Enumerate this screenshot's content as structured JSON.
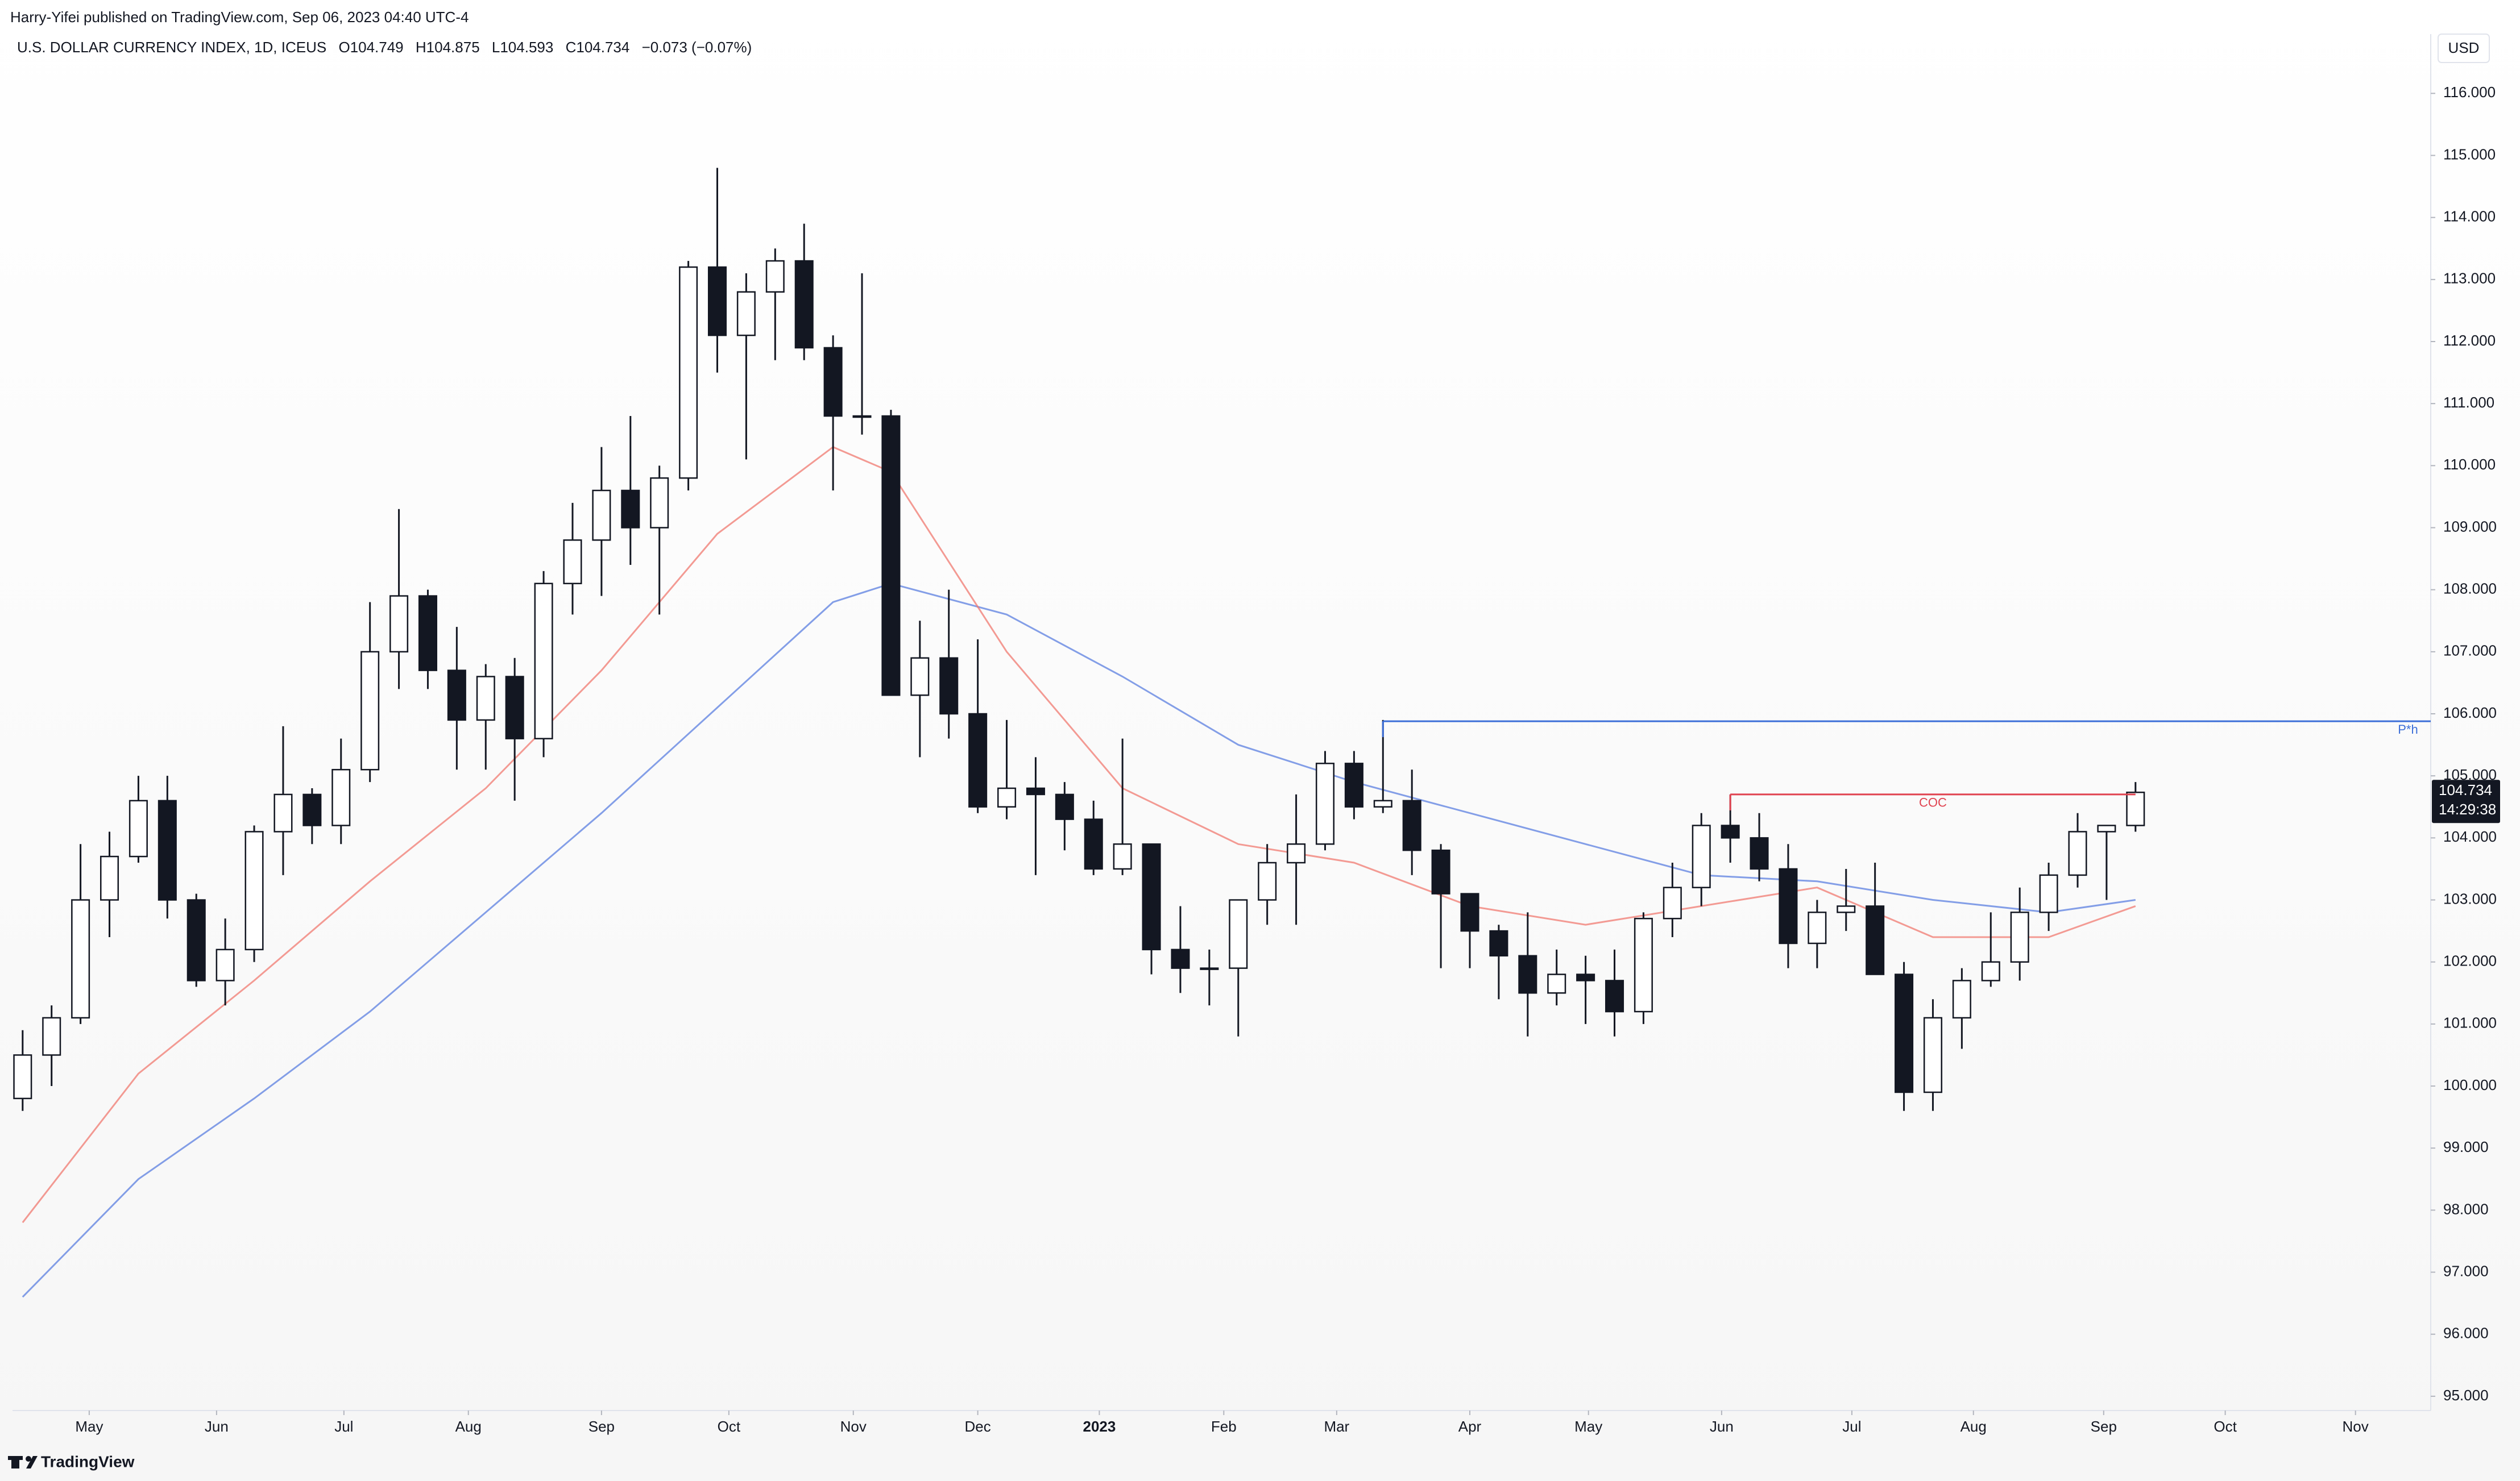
{
  "chart_data": {
    "type": "candlestick",
    "publisher": "Harry-Yifei published on TradingView.com, Sep 06, 2023 04:40 UTC-4",
    "title": "U.S. DOLLAR CURRENCY INDEX, 1D, ICEUS",
    "legend_values": [
      "O104.749",
      "H104.875",
      "L104.593",
      "C104.734",
      "−0.073 (−0.07%)"
    ],
    "currency": "USD",
    "brand": "TradingView",
    "last_price": 104.734,
    "countdown": "14:29:38",
    "up_color": "#ffffff",
    "down_color": "#131722",
    "x": [
      0,
      1,
      2,
      3,
      4,
      5,
      6,
      7,
      8,
      9,
      10,
      11,
      12,
      13,
      14,
      15,
      16,
      17,
      18,
      19,
      20,
      21,
      22,
      23,
      24,
      25,
      26,
      27,
      28,
      29,
      30,
      31,
      32,
      33,
      34,
      35,
      36,
      37,
      38,
      39,
      40,
      41,
      42,
      43,
      44,
      45,
      46,
      47,
      48,
      49,
      50,
      51,
      52,
      53,
      54,
      55,
      56,
      57,
      58,
      59,
      60,
      61,
      62,
      63,
      64,
      65,
      66,
      67,
      68,
      69,
      70,
      71,
      72,
      73
    ],
    "open": [
      99.8,
      100.5,
      101.1,
      103.0,
      103.7,
      104.6,
      103.0,
      101.7,
      102.2,
      104.1,
      104.7,
      104.2,
      105.1,
      107.0,
      107.9,
      106.7,
      105.9,
      106.6,
      105.6,
      108.1,
      108.8,
      109.6,
      109.0,
      109.8,
      113.2,
      112.1,
      112.8,
      113.3,
      111.9,
      110.8,
      110.8,
      106.3,
      106.9,
      106.0,
      104.5,
      104.8,
      104.7,
      104.3,
      103.5,
      103.9,
      102.2,
      101.9,
      101.9,
      103.0,
      103.6,
      103.9,
      105.2,
      104.5,
      104.6,
      103.8,
      103.1,
      102.5,
      102.1,
      101.5,
      101.8,
      101.7,
      101.2,
      102.7,
      103.2,
      104.2,
      104.0,
      103.5,
      102.3,
      102.8,
      102.9,
      101.8,
      99.9,
      101.1,
      101.7,
      102.0,
      102.8,
      103.4,
      104.1,
      104.2
    ],
    "high": [
      100.9,
      101.3,
      103.9,
      104.1,
      105.0,
      105.0,
      103.1,
      102.7,
      104.2,
      105.8,
      104.8,
      105.6,
      107.8,
      109.3,
      108.0,
      107.4,
      106.8,
      106.9,
      108.3,
      109.4,
      110.3,
      110.8,
      110.0,
      113.3,
      114.8,
      113.1,
      113.5,
      113.9,
      112.1,
      113.1,
      110.9,
      107.5,
      108.0,
      107.2,
      105.9,
      105.3,
      104.9,
      104.6,
      105.6,
      103.9,
      102.9,
      102.2,
      103.0,
      103.9,
      104.7,
      105.4,
      105.4,
      105.9,
      105.1,
      103.9,
      103.1,
      102.6,
      102.8,
      102.2,
      102.1,
      102.2,
      102.8,
      103.6,
      104.4,
      104.7,
      104.4,
      103.9,
      103.0,
      103.5,
      103.6,
      102.0,
      101.4,
      101.9,
      102.8,
      103.2,
      103.6,
      104.4,
      104.2,
      104.9
    ],
    "low": [
      99.6,
      100.0,
      101.0,
      102.4,
      103.6,
      102.7,
      101.6,
      101.3,
      102.0,
      103.4,
      103.9,
      103.9,
      104.9,
      106.4,
      106.4,
      105.1,
      105.1,
      104.6,
      105.3,
      107.6,
      107.9,
      108.4,
      107.6,
      109.6,
      111.5,
      110.1,
      111.7,
      111.7,
      109.6,
      110.5,
      106.3,
      105.3,
      105.6,
      104.4,
      104.3,
      103.4,
      103.8,
      103.4,
      103.4,
      101.8,
      101.5,
      101.3,
      100.8,
      102.6,
      102.6,
      103.8,
      104.3,
      104.4,
      103.4,
      101.9,
      101.9,
      101.4,
      100.8,
      101.3,
      101.0,
      100.8,
      101.0,
      102.4,
      102.9,
      103.6,
      103.3,
      101.9,
      101.9,
      102.5,
      101.8,
      99.6,
      99.6,
      100.6,
      101.6,
      101.7,
      102.5,
      103.2,
      103.0,
      104.1
    ],
    "close": [
      100.5,
      101.1,
      103.0,
      103.7,
      104.6,
      103.0,
      101.7,
      102.2,
      104.1,
      104.7,
      104.2,
      105.1,
      107.0,
      107.9,
      106.7,
      105.9,
      106.6,
      105.6,
      108.1,
      108.8,
      109.6,
      109.0,
      109.8,
      113.2,
      112.1,
      112.8,
      113.3,
      111.9,
      110.8,
      110.8,
      106.3,
      106.9,
      106.0,
      104.5,
      104.8,
      104.7,
      104.3,
      103.5,
      103.9,
      102.2,
      101.9,
      101.9,
      103.0,
      103.6,
      103.9,
      105.2,
      104.5,
      104.6,
      103.8,
      103.1,
      102.5,
      102.1,
      101.5,
      101.8,
      101.7,
      101.2,
      102.7,
      103.2,
      104.2,
      104.0,
      103.5,
      102.3,
      102.8,
      102.9,
      101.8,
      99.9,
      101.1,
      101.7,
      102.0,
      102.8,
      103.4,
      104.1,
      104.2,
      104.734
    ],
    "series": [
      {
        "color": "#5b7fe0",
        "x": [
          0,
          4,
          8,
          12,
          16,
          20,
          24,
          28,
          30,
          34,
          38,
          42,
          46,
          50,
          54,
          58,
          62,
          66,
          70,
          73
        ],
        "values": [
          96.6,
          98.5,
          99.8,
          101.2,
          102.8,
          104.4,
          106.1,
          107.8,
          108.1,
          107.6,
          106.6,
          105.5,
          104.9,
          104.4,
          103.9,
          103.4,
          103.3,
          103.0,
          102.8,
          103.0
        ]
      },
      {
        "color": "#f07a70",
        "x": [
          0,
          4,
          8,
          12,
          16,
          20,
          24,
          28,
          30,
          34,
          38,
          42,
          46,
          50,
          54,
          58,
          62,
          66,
          70,
          73
        ],
        "values": [
          97.8,
          100.2,
          101.7,
          103.3,
          104.8,
          106.7,
          108.9,
          110.3,
          109.9,
          107.0,
          104.8,
          103.9,
          103.6,
          102.9,
          102.6,
          102.9,
          103.2,
          102.4,
          102.4,
          102.9
        ]
      }
    ],
    "levels": [
      {
        "label": "P*h",
        "value": 105.88,
        "x": 47,
        "color": "#3d6fd8"
      },
      {
        "label": "COC",
        "value": 104.7,
        "x": 59,
        "x_end": 73,
        "color": "#e0424f"
      }
    ],
    "xlim": [
      -0.35,
      83.2
    ],
    "ylim": [
      94.77,
      116.47
    ],
    "xticks": [
      {
        "value": 2.3,
        "label": "May"
      },
      {
        "value": 6.7,
        "label": "Jun"
      },
      {
        "value": 11.1,
        "label": "Jul"
      },
      {
        "value": 15.4,
        "label": "Aug"
      },
      {
        "value": 20.0,
        "label": "Sep"
      },
      {
        "value": 24.4,
        "label": "Oct"
      },
      {
        "value": 28.7,
        "label": "Nov"
      },
      {
        "value": 33.0,
        "label": "Dec"
      },
      {
        "value": 37.2,
        "label": "2023"
      },
      {
        "value": 41.5,
        "label": "Feb"
      },
      {
        "value": 45.4,
        "label": "Mar"
      },
      {
        "value": 50.0,
        "label": "Apr"
      },
      {
        "value": 54.1,
        "label": "May"
      },
      {
        "value": 58.7,
        "label": "Jun"
      },
      {
        "value": 63.2,
        "label": "Jul"
      },
      {
        "value": 67.4,
        "label": "Aug"
      },
      {
        "value": 71.9,
        "label": "Sep"
      },
      {
        "value": 76.1,
        "label": "Oct"
      },
      {
        "value": 80.6,
        "label": "Nov"
      }
    ],
    "yticks": [
      {
        "value": 95,
        "label": "95.000"
      },
      {
        "value": 96,
        "label": "96.000"
      },
      {
        "value": 97,
        "label": "97.000"
      },
      {
        "value": 98,
        "label": "98.000"
      },
      {
        "value": 99,
        "label": "99.000"
      },
      {
        "value": 100,
        "label": "100.000"
      },
      {
        "value": 101,
        "label": "101.000"
      },
      {
        "value": 102,
        "label": "102.000"
      },
      {
        "value": 103,
        "label": "103.000"
      },
      {
        "value": 104,
        "label": "104.000"
      },
      {
        "value": 105,
        "label": "105.000"
      },
      {
        "value": 106,
        "label": "106.000"
      },
      {
        "value": 107,
        "label": "107.000"
      },
      {
        "value": 108,
        "label": "108.000"
      },
      {
        "value": 109,
        "label": "109.000"
      },
      {
        "value": 110,
        "label": "110.000"
      },
      {
        "value": 111,
        "label": "111.000"
      },
      {
        "value": 112,
        "label": "112.000"
      },
      {
        "value": 113,
        "label": "113.000"
      },
      {
        "value": 114,
        "label": "114.000"
      },
      {
        "value": 115,
        "label": "115.000"
      },
      {
        "value": 116,
        "label": "116.000"
      }
    ]
  }
}
